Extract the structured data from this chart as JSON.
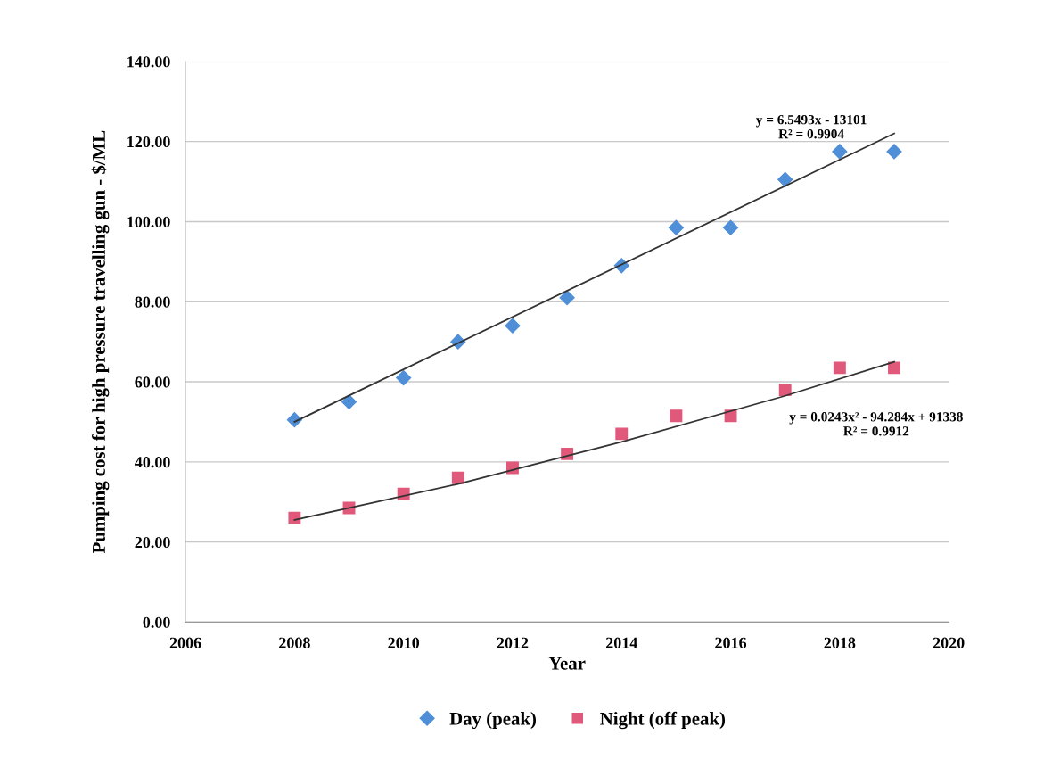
{
  "chart_data": {
    "type": "scatter",
    "xlabel": "Year",
    "ylabel": "Pumping cost for high pressure travelling gun - $/ML",
    "xlim": [
      2006,
      2020
    ],
    "xticks": [
      2006,
      2008,
      2010,
      2012,
      2014,
      2016,
      2018,
      2020
    ],
    "ylim": [
      0,
      140
    ],
    "yticks": [
      {
        "value": 0,
        "label": "0.00"
      },
      {
        "value": 20,
        "label": "20.00"
      },
      {
        "value": 40,
        "label": "40.00"
      },
      {
        "value": 60,
        "label": "60.00"
      },
      {
        "value": 80,
        "label": "80.00"
      },
      {
        "value": 100,
        "label": "100.00"
      },
      {
        "value": 120,
        "label": "120.00"
      },
      {
        "value": 140,
        "label": "140.00"
      }
    ],
    "grid": "y",
    "legend": "bottom",
    "x": [
      2008,
      2009,
      2010,
      2011,
      2012,
      2013,
      2014,
      2015,
      2016,
      2017,
      2018,
      2019
    ],
    "series": [
      {
        "name": "Day (peak)",
        "color": "#4f8fd8",
        "marker": "diamond",
        "values": [
          50.5,
          55,
          61,
          70,
          74,
          81,
          89,
          98.5,
          98.5,
          110.5,
          117.5,
          117.5
        ]
      },
      {
        "name": "Night (off peak)",
        "color": "#e0587a",
        "marker": "square",
        "values": [
          26,
          28.5,
          32,
          36,
          38.5,
          42,
          47,
          51.5,
          51.5,
          58,
          63.5,
          63.5
        ]
      },
      {
        "type": "line",
        "color": "#333333",
        "x": [
          2008,
          2019
        ],
        "values": [
          50,
          122
        ]
      },
      {
        "type": "line",
        "color": "#333333",
        "x": [
          2008,
          2011,
          2014,
          2017,
          2019
        ],
        "values": [
          25.5,
          34.5,
          45,
          56.5,
          65
        ]
      }
    ],
    "annotations": [
      "y = 6.5493x - 13101\nR² = 0.9904",
      "y = 0.0243x² - 94.284x + 91338\nR² = 0.9912"
    ]
  }
}
